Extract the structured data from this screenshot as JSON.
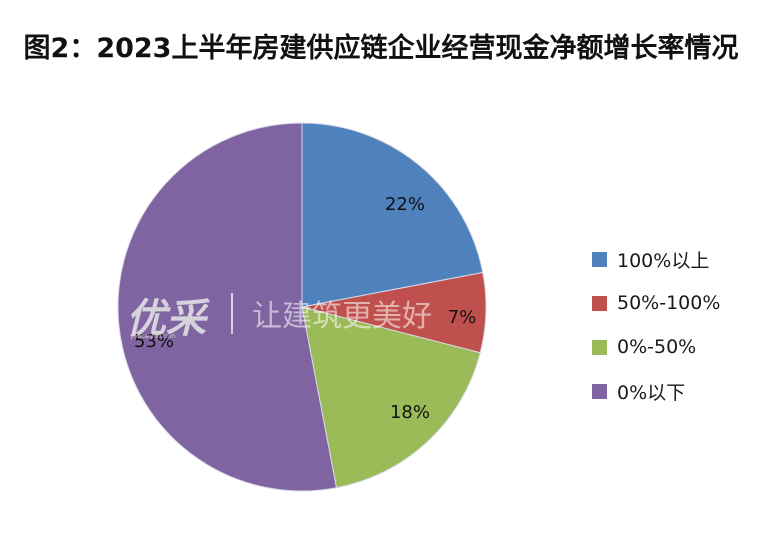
{
  "chart_data": {
    "type": "pie",
    "title": "图2：2023上半年房建供应链企业经营现金净额增长率情况",
    "categories": [
      "100%以上",
      "50%-100%",
      "0%-50%",
      "0%以下"
    ],
    "values": [
      22,
      7,
      18,
      53
    ],
    "data_labels": [
      "22%",
      "7%",
      "18%",
      "53%"
    ],
    "colors": [
      "#4F81BD",
      "#C0504D",
      "#9BBB59",
      "#8064A2"
    ],
    "start_angle_deg": 0,
    "direction": "clockwise",
    "legend_position": "right",
    "xlabel": "",
    "ylabel": ""
  },
  "legend": {
    "items": [
      {
        "label": "100%以上",
        "color": "#4F81BD"
      },
      {
        "label": "50%-100%",
        "color": "#C0504D"
      },
      {
        "label": "0%-50%",
        "color": "#9BBB59"
      },
      {
        "label": "0%以下",
        "color": "#8064A2"
      }
    ]
  },
  "watermark": {
    "logo": "优采",
    "url": "youcaiyun.com",
    "slogan": "让建筑更美好"
  }
}
